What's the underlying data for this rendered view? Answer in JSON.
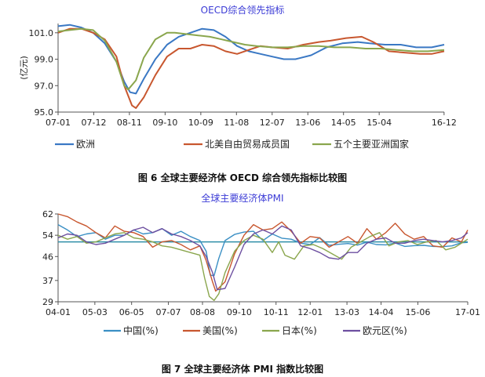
{
  "chart_data": [
    {
      "type": "line",
      "title": "OECD综合领先指标",
      "ylabel": "(亿元)",
      "ylim": [
        95.0,
        101.7
      ],
      "yticks": [
        95.0,
        97.0,
        99.0,
        101.0
      ],
      "ytick_labels": [
        "95.0",
        "97.0",
        "99.0",
        "101.0"
      ],
      "x_range": [
        2007.0,
        2016.92
      ],
      "xticks": [
        2007.0,
        2007.917,
        2008.833,
        2009.75,
        2010.667,
        2011.583,
        2012.5,
        2013.417,
        2014.333,
        2015.25,
        2016.917
      ],
      "xtick_labels": [
        "07-01",
        "07-12",
        "08-11",
        "09-10",
        "10-09",
        "11-08",
        "12-07",
        "13-06",
        "14-05",
        "15-04",
        "16-12"
      ],
      "grid": false,
      "legend_position": "bottom",
      "series": [
        {
          "name": "欧洲",
          "color": "#3a78c4",
          "x": [
            2007.0,
            2007.3,
            2007.6,
            2007.9,
            2008.2,
            2008.5,
            2008.7,
            2008.85,
            2009.0,
            2009.2,
            2009.5,
            2009.8,
            2010.1,
            2010.4,
            2010.7,
            2011.0,
            2011.3,
            2011.6,
            2011.9,
            2012.2,
            2012.5,
            2012.8,
            2013.1,
            2013.5,
            2013.9,
            2014.3,
            2014.7,
            2015.0,
            2015.4,
            2015.8,
            2016.2,
            2016.6,
            2016.92
          ],
          "y": [
            101.5,
            101.6,
            101.4,
            101.0,
            100.2,
            98.8,
            97.3,
            96.5,
            96.4,
            97.5,
            99.0,
            100.1,
            100.7,
            101.0,
            101.3,
            101.2,
            100.7,
            100.0,
            99.6,
            99.4,
            99.2,
            99.0,
            99.0,
            99.3,
            99.9,
            100.2,
            100.3,
            100.2,
            100.1,
            100.1,
            99.9,
            99.9,
            100.1
          ]
        },
        {
          "name": "北美自由贸易成员国",
          "color": "#c8572f",
          "x": [
            2007.0,
            2007.3,
            2007.6,
            2007.9,
            2008.2,
            2008.5,
            2008.7,
            2008.9,
            2009.0,
            2009.2,
            2009.5,
            2009.8,
            2010.1,
            2010.4,
            2010.7,
            2011.0,
            2011.3,
            2011.6,
            2011.9,
            2012.2,
            2012.5,
            2012.9,
            2013.3,
            2013.7,
            2014.0,
            2014.4,
            2014.8,
            2015.1,
            2015.5,
            2015.9,
            2016.3,
            2016.6,
            2016.92
          ],
          "y": [
            101.0,
            101.3,
            101.3,
            101.0,
            100.5,
            99.2,
            97.0,
            95.5,
            95.3,
            96.1,
            97.8,
            99.2,
            99.8,
            99.8,
            100.1,
            100.0,
            99.6,
            99.4,
            99.7,
            100.0,
            99.9,
            99.8,
            100.1,
            100.3,
            100.4,
            100.6,
            100.7,
            100.3,
            99.6,
            99.5,
            99.4,
            99.4,
            99.6
          ]
        },
        {
          "name": "五个主要亚洲国家",
          "color": "#8aa64d",
          "x": [
            2007.0,
            2007.3,
            2007.6,
            2007.9,
            2008.2,
            2008.5,
            2008.7,
            2008.8,
            2009.0,
            2009.2,
            2009.5,
            2009.8,
            2010.0,
            2010.3,
            2010.6,
            2010.9,
            2011.2,
            2011.5,
            2011.8,
            2012.1,
            2012.5,
            2012.9,
            2013.3,
            2013.7,
            2014.1,
            2014.5,
            2014.9,
            2015.3,
            2015.7,
            2016.1,
            2016.5,
            2016.92
          ],
          "y": [
            101.1,
            101.2,
            101.3,
            101.2,
            100.4,
            98.8,
            97.0,
            96.7,
            97.4,
            99.1,
            100.5,
            101.0,
            101.0,
            100.9,
            100.8,
            100.7,
            100.5,
            100.3,
            100.1,
            100.0,
            99.9,
            99.9,
            100.0,
            100.0,
            99.9,
            99.9,
            99.8,
            99.8,
            99.7,
            99.6,
            99.6,
            99.7
          ]
        }
      ]
    },
    {
      "type": "line",
      "title": "全球主要经济体PMI",
      "ylim": [
        29,
        62
      ],
      "yticks": [
        29,
        37,
        46,
        54,
        62
      ],
      "ytick_labels": [
        "29",
        "37",
        "46",
        "54",
        "62"
      ],
      "reference_line": 51.5,
      "x_range": [
        2004.0,
        2017.0
      ],
      "xticks": [
        2004.0,
        2005.167,
        2006.333,
        2007.5,
        2008.583,
        2009.75,
        2010.917,
        2012.0,
        2013.167,
        2014.25,
        2015.417,
        2017.0
      ],
      "xtick_labels": [
        "04-01",
        "05-03",
        "06-05",
        "07-07",
        "08-08",
        "09-10",
        "10-11",
        "12-01",
        "13-03",
        "14-04",
        "15-06",
        "17-01"
      ],
      "grid": false,
      "legend_position": "bottom",
      "series": [
        {
          "name": "中国(%)",
          "color": "#3a8fc4",
          "x": [
            2004.0,
            2004.3,
            2004.6,
            2004.9,
            2005.2,
            2005.5,
            2005.8,
            2006.1,
            2006.4,
            2006.7,
            2007.0,
            2007.3,
            2007.6,
            2007.9,
            2008.2,
            2008.5,
            2008.7,
            2008.83,
            2008.95,
            2009.1,
            2009.3,
            2009.6,
            2009.9,
            2010.2,
            2010.5,
            2010.8,
            2011.1,
            2011.4,
            2011.7,
            2012.0,
            2012.3,
            2012.6,
            2012.9,
            2013.2,
            2013.5,
            2013.8,
            2014.1,
            2014.4,
            2014.7,
            2015.0,
            2015.3,
            2015.6,
            2015.9,
            2016.2,
            2016.5,
            2016.8,
            2017.0
          ],
          "y": [
            58.0,
            56.0,
            53.5,
            54.5,
            55.0,
            52.5,
            54.0,
            54.0,
            56.0,
            54.5,
            55.0,
            56.5,
            54.0,
            55.5,
            53.5,
            52.0,
            48.0,
            39.0,
            38.8,
            45.3,
            52.0,
            54.3,
            55.2,
            55.5,
            52.0,
            54.5,
            52.9,
            52.5,
            51.0,
            50.5,
            53.1,
            50.2,
            50.6,
            50.9,
            50.3,
            51.4,
            50.5,
            50.4,
            51.1,
            49.8,
            50.1,
            50.2,
            49.8,
            49.7,
            50.0,
            51.2,
            51.3
          ]
        },
        {
          "name": "美国(%)",
          "color": "#c8572f",
          "x": [
            2004.0,
            2004.3,
            2004.6,
            2004.9,
            2005.2,
            2005.5,
            2005.8,
            2006.1,
            2006.4,
            2006.7,
            2007.0,
            2007.3,
            2007.6,
            2007.9,
            2008.2,
            2008.5,
            2008.7,
            2008.9,
            2009.0,
            2009.3,
            2009.6,
            2009.9,
            2010.2,
            2010.5,
            2010.8,
            2011.1,
            2011.4,
            2011.7,
            2012.0,
            2012.3,
            2012.6,
            2012.9,
            2013.2,
            2013.5,
            2013.8,
            2014.1,
            2014.4,
            2014.7,
            2015.0,
            2015.3,
            2015.6,
            2015.9,
            2016.2,
            2016.5,
            2016.8,
            2017.0
          ],
          "y": [
            62.0,
            61.0,
            59.0,
            57.5,
            55.0,
            53.0,
            57.5,
            55.5,
            55.0,
            53.5,
            49.5,
            51.5,
            52.0,
            50.5,
            48.5,
            50.0,
            44.5,
            36.5,
            33.0,
            36.5,
            47.0,
            54.0,
            58.0,
            56.0,
            56.5,
            59.0,
            55.5,
            51.0,
            53.5,
            53.0,
            49.5,
            51.5,
            53.5,
            51.0,
            56.5,
            52.5,
            55.0,
            58.5,
            54.5,
            52.5,
            53.5,
            50.0,
            49.5,
            53.0,
            51.5,
            56.0
          ]
        },
        {
          "name": "日本(%)",
          "color": "#8aa64d",
          "x": [
            2004.0,
            2004.3,
            2004.6,
            2004.9,
            2005.2,
            2005.5,
            2005.8,
            2006.1,
            2006.4,
            2006.7,
            2007.0,
            2007.3,
            2007.6,
            2007.9,
            2008.2,
            2008.5,
            2008.65,
            2008.8,
            2008.95,
            2009.1,
            2009.3,
            2009.6,
            2009.9,
            2010.2,
            2010.5,
            2010.8,
            2011.0,
            2011.2,
            2011.5,
            2011.8,
            2012.1,
            2012.4,
            2012.7,
            2013.0,
            2013.3,
            2013.6,
            2013.9,
            2014.2,
            2014.5,
            2014.8,
            2015.1,
            2015.4,
            2015.7,
            2016.0,
            2016.3,
            2016.6,
            2017.0
          ],
          "y": [
            54.0,
            52.5,
            53.5,
            51.0,
            51.5,
            53.0,
            54.5,
            55.0,
            53.0,
            52.5,
            51.5,
            50.0,
            49.5,
            48.5,
            47.5,
            46.5,
            38.0,
            31.0,
            29.5,
            32.0,
            40.0,
            48.0,
            52.0,
            54.0,
            52.5,
            47.5,
            51.5,
            46.5,
            45.0,
            50.0,
            50.5,
            49.0,
            47.0,
            45.0,
            49.5,
            51.5,
            53.5,
            55.0,
            50.0,
            51.5,
            52.0,
            50.5,
            51.5,
            52.0,
            48.5,
            49.5,
            52.5
          ]
        },
        {
          "name": "欧元区(%)",
          "color": "#6d4fa0",
          "x": [
            2004.0,
            2004.3,
            2004.6,
            2004.9,
            2005.2,
            2005.5,
            2005.8,
            2006.1,
            2006.4,
            2006.7,
            2007.0,
            2007.3,
            2007.6,
            2007.9,
            2008.2,
            2008.5,
            2008.7,
            2008.9,
            2009.05,
            2009.3,
            2009.6,
            2009.9,
            2010.2,
            2010.5,
            2010.8,
            2011.1,
            2011.4,
            2011.7,
            2012.0,
            2012.3,
            2012.6,
            2012.9,
            2013.2,
            2013.5,
            2013.8,
            2014.1,
            2014.4,
            2014.7,
            2015.0,
            2015.3,
            2015.6,
            2015.9,
            2016.2,
            2016.5,
            2016.8,
            2017.0
          ],
          "y": [
            53.0,
            54.5,
            54.0,
            51.5,
            50.5,
            51.0,
            52.5,
            54.0,
            56.0,
            57.0,
            55.0,
            56.5,
            54.5,
            53.5,
            52.0,
            50.0,
            46.0,
            40.0,
            33.5,
            34.0,
            42.0,
            50.5,
            54.5,
            56.0,
            54.5,
            57.5,
            56.0,
            50.0,
            49.0,
            47.5,
            45.5,
            45.0,
            47.5,
            47.5,
            51.0,
            52.5,
            53.0,
            51.0,
            51.0,
            52.0,
            52.5,
            52.0,
            51.5,
            52.0,
            53.0,
            55.0
          ]
        }
      ]
    }
  ],
  "captions": [
    "图 6  全球主要经济体 OECD 综合领先指标比较图",
    "图 7  全球主要经济体 PMI 指数比较图"
  ]
}
